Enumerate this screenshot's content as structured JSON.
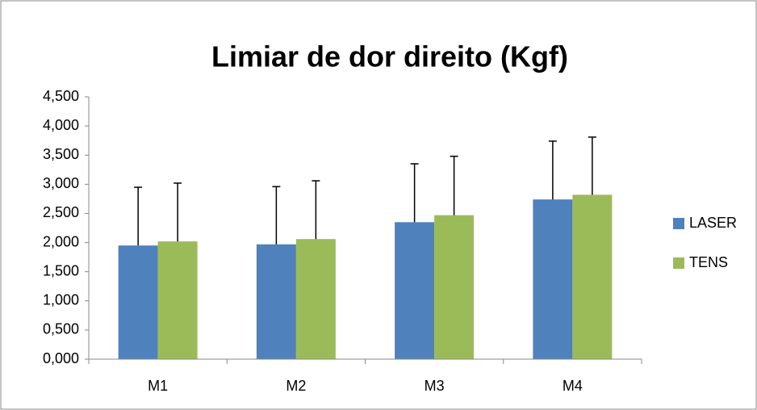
{
  "chart_data": {
    "type": "bar",
    "title": "Limiar de dor direito (Kgf)",
    "categories": [
      "M1",
      "M2",
      "M3",
      "M4"
    ],
    "series": [
      {
        "name": "LASER",
        "color": "#4f81bd",
        "values": [
          1.95,
          1.97,
          2.35,
          2.74
        ],
        "errors": [
          1.0,
          0.99,
          1.0,
          1.0
        ]
      },
      {
        "name": "TENS",
        "color": "#9bbb59",
        "values": [
          2.02,
          2.06,
          2.47,
          2.82
        ],
        "errors": [
          1.0,
          1.0,
          1.01,
          0.99
        ]
      }
    ],
    "ylim": [
      0,
      4.5
    ],
    "yticks": [
      {
        "value": 0,
        "label": "0,000"
      },
      {
        "value": 0.5,
        "label": "0,500"
      },
      {
        "value": 1,
        "label": "1,000"
      },
      {
        "value": 1.5,
        "label": "1,500"
      },
      {
        "value": 2,
        "label": "2,000"
      },
      {
        "value": 2.5,
        "label": "2,500"
      },
      {
        "value": 3,
        "label": "3,000"
      },
      {
        "value": 3.5,
        "label": "3,500"
      },
      {
        "value": 4,
        "label": "4,000"
      },
      {
        "value": 4.5,
        "label": "4,500"
      }
    ],
    "legend": "right",
    "grid": false
  }
}
